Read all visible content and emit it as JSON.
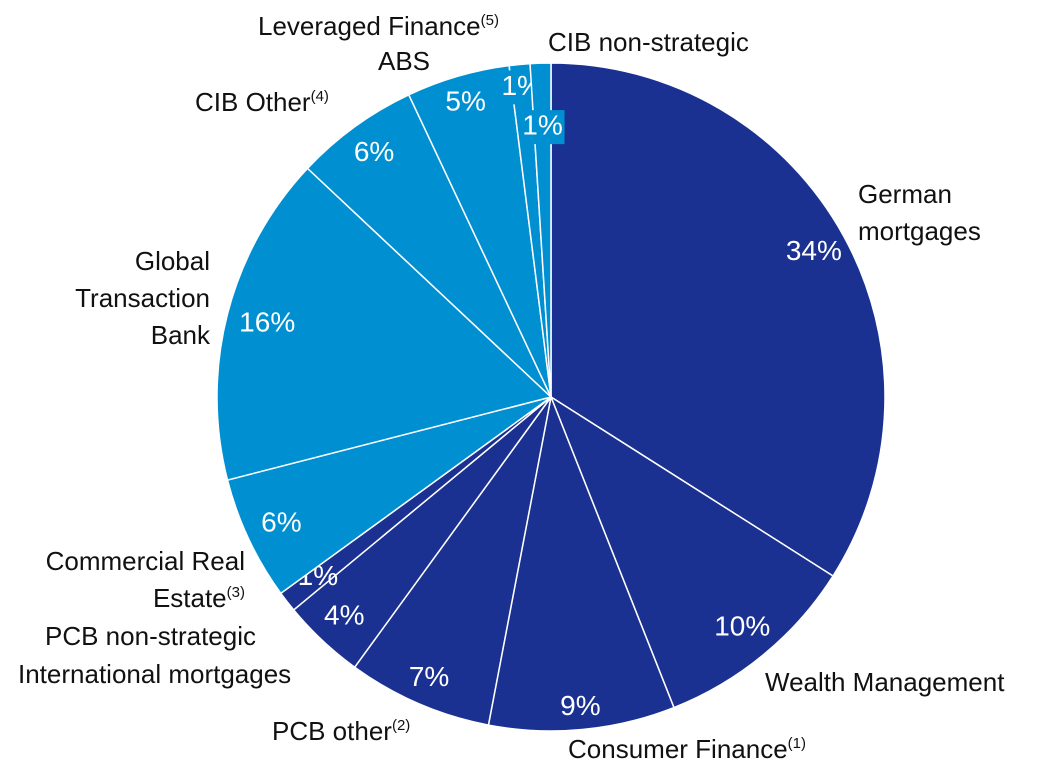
{
  "chart_data": {
    "type": "pie",
    "categories": [
      "German mortgages",
      "Wealth Management",
      "Consumer Finance",
      "PCB other",
      "International mortgages",
      "PCB non-strategic",
      "Commercial Real Estate",
      "Global Transaction Bank",
      "CIB Other",
      "ABS",
      "Leveraged Finance",
      "CIB non-strategic"
    ],
    "notes": [
      null,
      null,
      "(1)",
      "(2)",
      null,
      null,
      "(3)",
      null,
      "(4)",
      null,
      "(5)",
      null
    ],
    "values": [
      34,
      10,
      9,
      7,
      4,
      1,
      6,
      16,
      6,
      5,
      1,
      1
    ],
    "value_labels": [
      "34%",
      "10%",
      "9%",
      "7%",
      "4%",
      "1%",
      "6%",
      "16%",
      "6%",
      "5%",
      "1%",
      "1%"
    ],
    "colors": [
      "#1b3191",
      "#1b3191",
      "#1b3191",
      "#1b3191",
      "#1b3191",
      "#1b3191",
      "#0090d2",
      "#0090d2",
      "#0090d2",
      "#0090d2",
      "#0090d2",
      "#0090d2"
    ]
  }
}
